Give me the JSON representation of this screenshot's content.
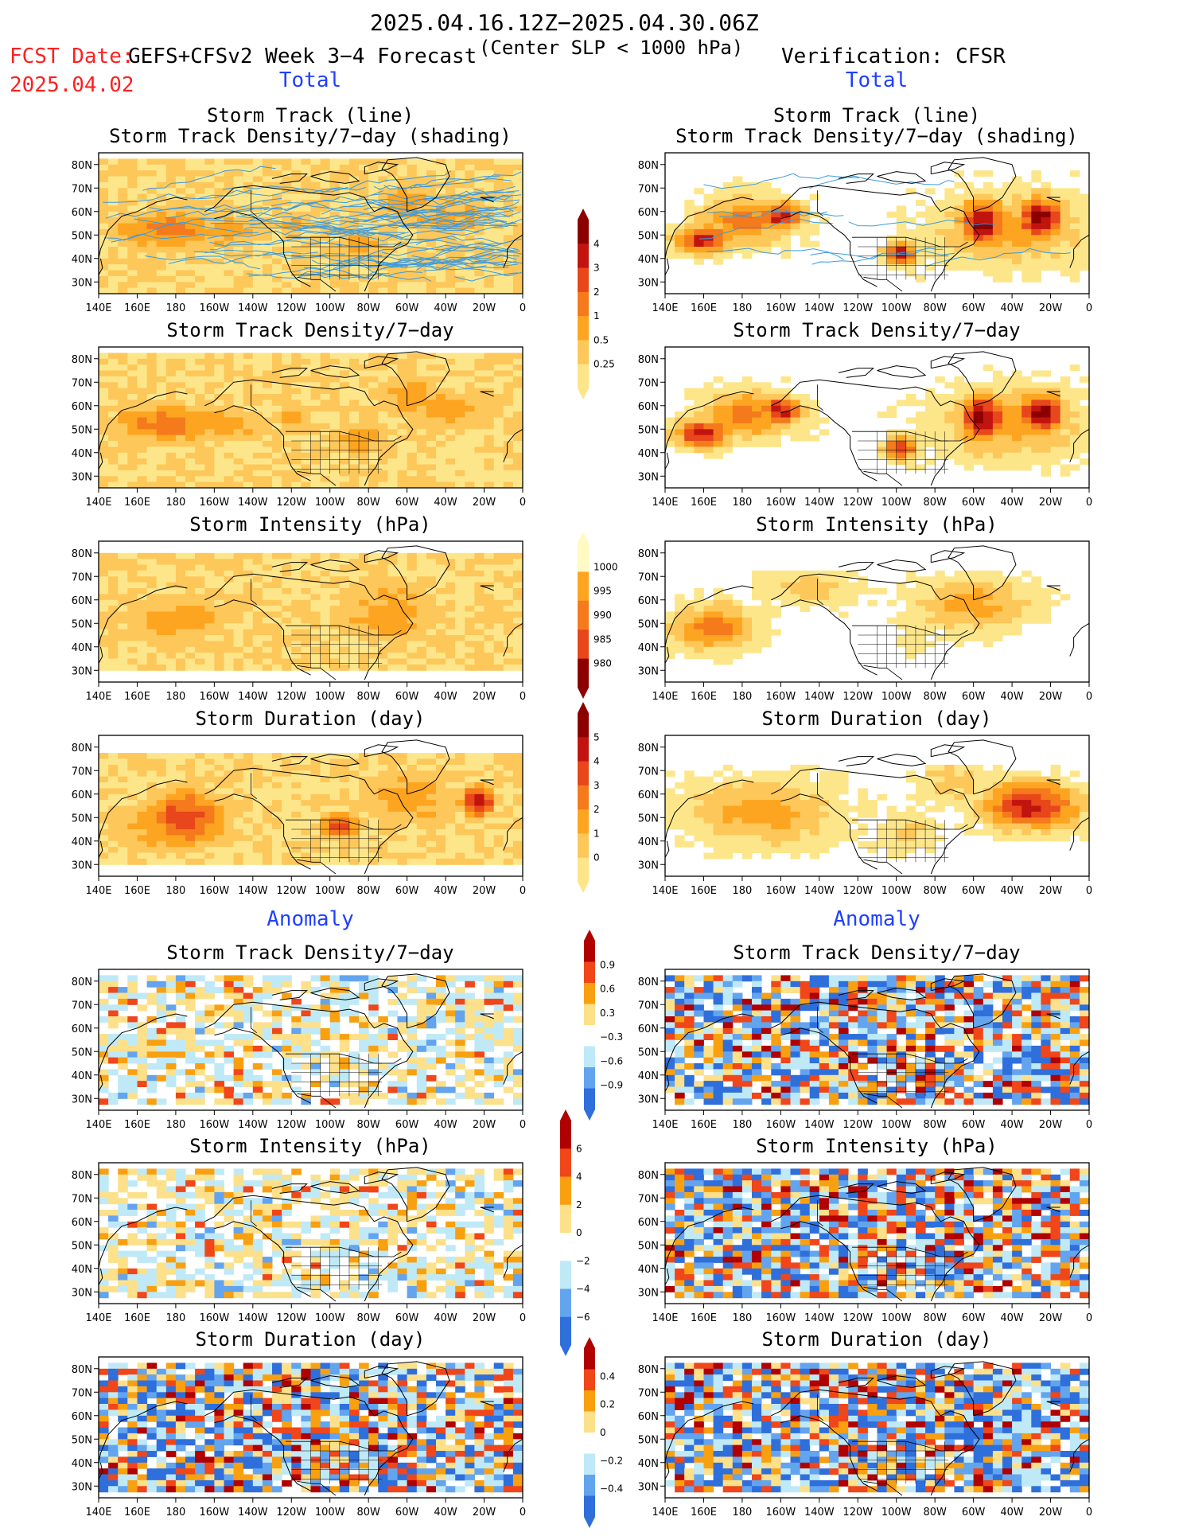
{
  "header": {
    "date_range": "2025.04.16.12Z−2025.04.30.06Z",
    "fcst_date_label": "FCST Date:",
    "fcst_date": "2025.04.02",
    "model_title": "GEFS+CFSv2 Week 3−4 Forecast",
    "criterion": "(Center SLP < 1000 hPa)",
    "verification": "Verification: CFSR"
  },
  "sections": {
    "total_left": "Total",
    "total_right": "Total",
    "anomaly_left": "Anomaly",
    "anomaly_right": "Anomaly"
  },
  "titles": {
    "track_line": "Storm Track (line)",
    "track_density_shading": "Storm Track Density/7−day (shading)",
    "track_density": "Storm Track Density/7−day",
    "intensity": "Storm Intensity (hPa)",
    "duration": "Storm Duration (day)"
  },
  "axes": {
    "lat_labels": [
      "80N",
      "70N",
      "60N",
      "50N",
      "40N",
      "30N"
    ],
    "lon_labels": [
      "140E",
      "160E",
      "180",
      "160W",
      "140W",
      "120W",
      "100W",
      "80W",
      "60W",
      "40W",
      "20W",
      "0"
    ]
  },
  "colorbars": {
    "density_total": [
      "4",
      "3",
      "2",
      "1",
      "0.5",
      "0.25"
    ],
    "intensity_total": [
      "1000",
      "995",
      "990",
      "985",
      "980"
    ],
    "duration_total": [
      "5",
      "4",
      "3",
      "2",
      "1",
      "0"
    ],
    "density_anom": [
      "0.9",
      "0.6",
      "0.3",
      "−0.3",
      "−0.6",
      "−0.9"
    ],
    "intensity_anom": [
      "6",
      "4",
      "2",
      "0",
      "−2",
      "−4",
      "−6"
    ],
    "duration_anom": [
      "0.4",
      "0.2",
      "0",
      "−0.2",
      "−0.4"
    ]
  },
  "palette": {
    "total": [
      "#fff9c2",
      "#fde68a",
      "#fdc75a",
      "#fda520",
      "#f47a1c",
      "#e8461b",
      "#c2140e",
      "#8c0000"
    ],
    "anomaly": [
      "#2f6fdc",
      "#63a4ef",
      "#bfe9f7",
      "#ffffff",
      "#fde08a",
      "#f9a011",
      "#f0461a",
      "#b00000"
    ],
    "track_line": "#3a9be0",
    "title_red": "#ff2020",
    "section_blue": "#1f3fff"
  }
}
